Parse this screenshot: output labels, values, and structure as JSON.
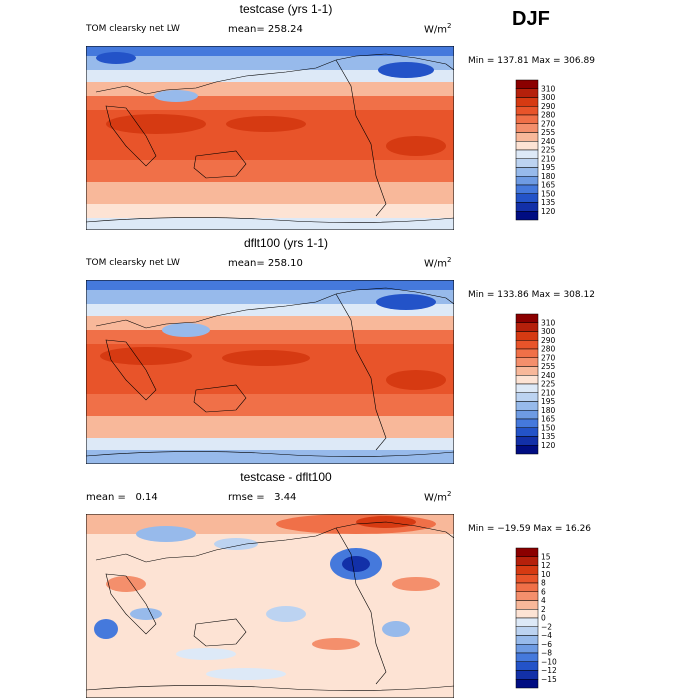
{
  "season": "DJF",
  "panels": [
    {
      "title": "testcase (yrs 1-1)",
      "long_title": "TOM clearsky net LW",
      "mean": "mean= 258.24",
      "units": "W/m",
      "units_sup": "2",
      "minmax": "Min = 137.81 Max = 306.89",
      "levels": [
        "310",
        "300",
        "290",
        "280",
        "270",
        "255",
        "240",
        "225",
        "210",
        "195",
        "180",
        "165",
        "150",
        "135",
        "120"
      ],
      "colors": [
        "#8b0000",
        "#b5200b",
        "#d63a12",
        "#e8542a",
        "#f07048",
        "#f48f6c",
        "#f8b89a",
        "#fde3d4",
        "#dde9f7",
        "#bcd3f1",
        "#97baeb",
        "#6e9be3",
        "#4579dc",
        "#2353c8",
        "#1230a8",
        "#000d82"
      ]
    },
    {
      "title": "dflt100 (yrs 1-1)",
      "long_title": "TOM clearsky net LW",
      "mean": "mean= 258.10",
      "units": "W/m",
      "units_sup": "2",
      "minmax": "Min = 133.86 Max = 308.12",
      "levels": [
        "310",
        "300",
        "290",
        "280",
        "270",
        "255",
        "240",
        "225",
        "210",
        "195",
        "180",
        "165",
        "150",
        "135",
        "120"
      ],
      "colors": [
        "#8b0000",
        "#b5200b",
        "#d63a12",
        "#e8542a",
        "#f07048",
        "#f48f6c",
        "#f8b89a",
        "#fde3d4",
        "#dde9f7",
        "#bcd3f1",
        "#97baeb",
        "#6e9be3",
        "#4579dc",
        "#2353c8",
        "#1230a8",
        "#000d82"
      ]
    },
    {
      "title": "testcase - dflt100",
      "mean_label": "mean =",
      "mean_value": "0.14",
      "rmse_label": "rmse =",
      "rmse_value": "3.44",
      "units": "W/m",
      "units_sup": "2",
      "minmax": "Min = −19.59 Max =  16.26",
      "levels": [
        "15",
        "12",
        "10",
        "8",
        "6",
        "4",
        "2",
        "0",
        "−2",
        "−4",
        "−6",
        "−8",
        "−10",
        "−12",
        "−15"
      ],
      "colors": [
        "#8b0000",
        "#b5200b",
        "#d63a12",
        "#e8542a",
        "#f07048",
        "#f48f6c",
        "#f8b89a",
        "#fde3d4",
        "#dde9f7",
        "#bcd3f1",
        "#97baeb",
        "#6e9be3",
        "#4579dc",
        "#2353c8",
        "#1230a8",
        "#000d82"
      ]
    }
  ]
}
